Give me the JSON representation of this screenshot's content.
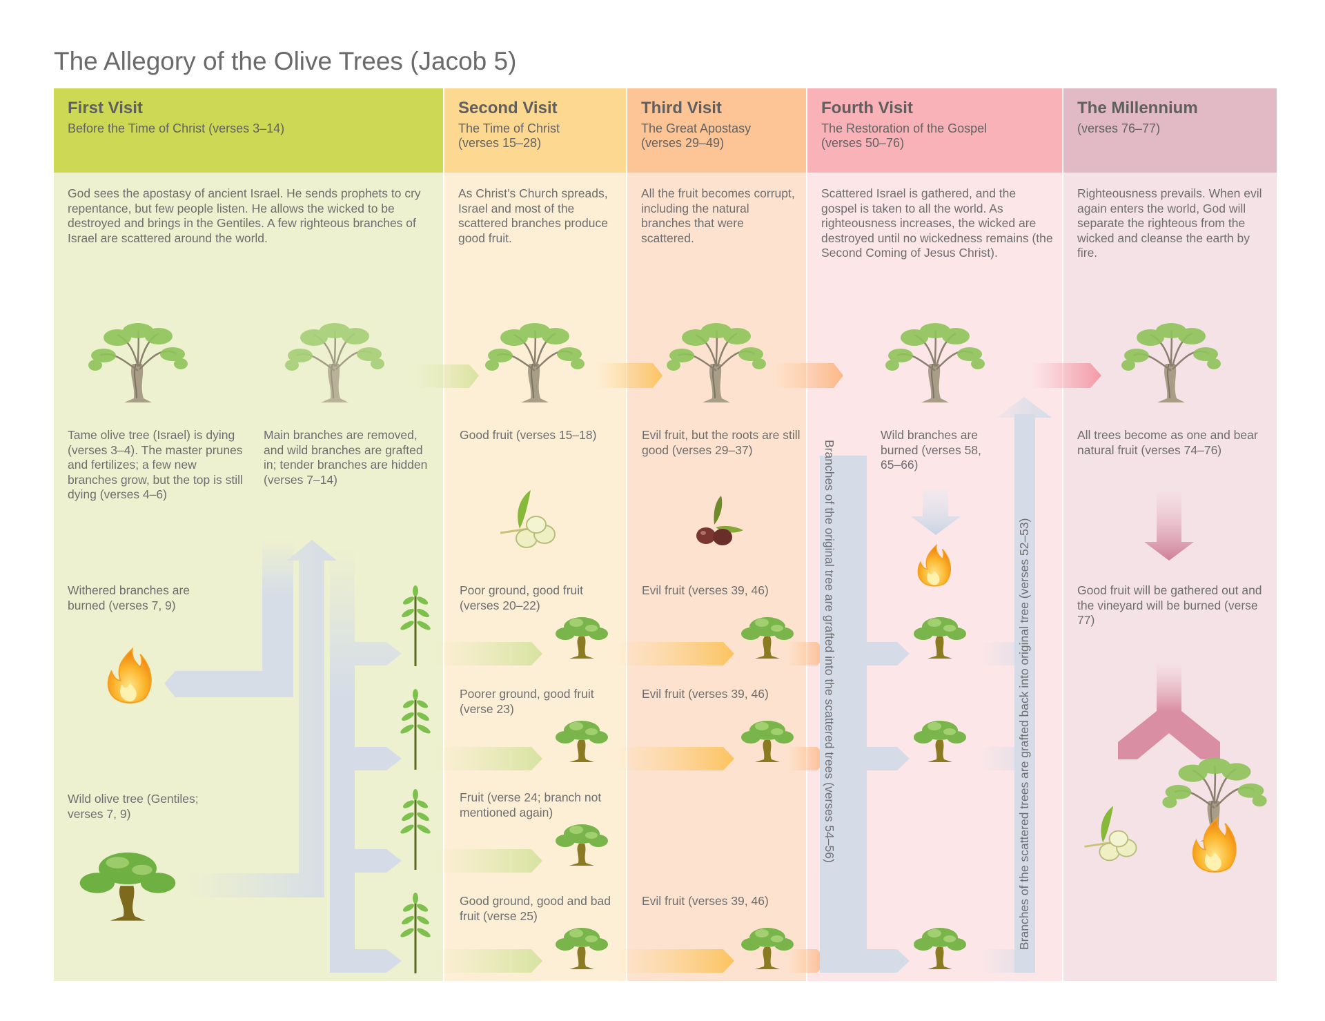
{
  "title": "The Allegory of the Olive Trees (Jacob 5)",
  "colors": {
    "first_head": "#cdd855",
    "first_body": "#eef1cf",
    "second_head": "#fdd891",
    "second_body": "#fdefd6",
    "third_head": "#fdc596",
    "third_body": "#fde3cf",
    "fourth_head": "#f8b2b8",
    "fourth_body": "#fce6e8",
    "mill_head": "#e1bac6",
    "mill_body": "#f5e2e6",
    "arrow_blue": "#d5dce8"
  },
  "columns": [
    {
      "heading": "First Visit",
      "subheading": "Before the Time of Christ (verses 3–14)",
      "description": "God sees the apostasy of ancient Israel. He sends prophets to cry repentance, but few people listen. He allows the wicked to be destroyed and brings in the Gentiles. A few righteous branches of Israel are scattered around the world."
    },
    {
      "heading": "Second Visit",
      "subheading": "The Time of Christ\n(verses 15–28)",
      "description": "As Christ’s Church spreads, Israel and most of the scattered branches produce good fruit."
    },
    {
      "heading": "Third Visit",
      "subheading": "The Great Apostasy\n(verses 29–49)",
      "description": "All the fruit becomes corrupt, including the natural branches that were scattered."
    },
    {
      "heading": "Fourth Visit",
      "subheading": "The Restoration of the Gospel\n(verses 50–76)",
      "description": "Scattered Israel is gathered, and the gospel is taken to all the world. As righteousness increases, the wicked are destroyed until no wickedness remains (the Second Coming of Jesus Christ)."
    },
    {
      "heading": "The Millennium",
      "subheading": "(verses 76–77)",
      "description": "Righteousness prevails. When evil again enters the world, God will separate the righteous from the wicked and cleanse the earth by fire."
    }
  ],
  "labels": {
    "tame_tree": "Tame olive tree (Israel) is dying (verses 3–4). The master prunes and fertilizes; a few new branches grow, but the top is still dying (verses 4–6)",
    "main_branches": "Main branches are removed, and wild branches are grafted in; tender branches are hidden (verses 7–14)",
    "withered": "Withered branches are burned (verses 7, 9)",
    "wild_tree": "Wild olive tree (Gentiles; verses 7, 9)",
    "good_fruit": "Good fruit (verses 15–18)",
    "poor_ground": "Poor ground, good fruit (verses 20–22)",
    "poorer_ground": "Poorer ground, good fruit (verse 23)",
    "fruit_24": "Fruit (verse 24; branch not mentioned again)",
    "good_ground": "Good ground, good and bad fruit (verse 25)",
    "evil_roots": "Evil fruit, but the roots are still good (verses 29–37)",
    "evil_1": "Evil fruit (verses 39, 46)",
    "evil_2": "Evil fruit (verses 39, 46)",
    "evil_3": "Evil fruit (verses 39, 46)",
    "wild_burned": "Wild branches are burned (verses 58, 65–66)",
    "grafted_into": "Branches of the original tree are grafted into the scattered trees (verses 54–56)",
    "grafted_back": "Branches of the scattered trees are grafted back into original tree (verses 52–53)",
    "all_trees": "All trees become as one and bear natural fruit (verses 74–76)",
    "gathered": "Good fruit will be gathered out and the vineyard will be burned (verse 77)"
  }
}
